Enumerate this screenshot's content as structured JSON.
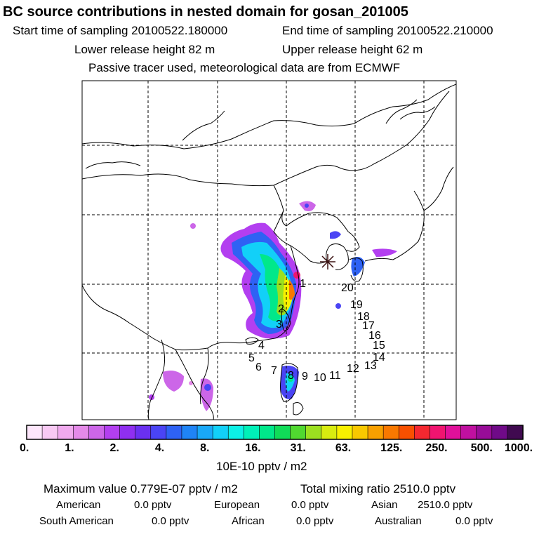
{
  "header": {
    "title": "BC  source contributions in nested domain for gosan_201005",
    "start_label": "Start time of sampling 20100522.180000",
    "end_label": "End time of sampling 20100522.210000",
    "lower_release": "Lower release height   82 m",
    "upper_release": "Upper release height   62 m",
    "tracer_note": "Passive tracer used, meteorological data are from ECMWF"
  },
  "map": {
    "receptor_marker": "receptor-star",
    "trajectory_labels": [
      "1",
      "2",
      "3",
      "4",
      "5",
      "6",
      "7",
      "8",
      "9",
      "10",
      "11",
      "12",
      "13",
      "14",
      "15",
      "16",
      "17",
      "18",
      "19",
      "20"
    ]
  },
  "colorbar": {
    "tick_labels": [
      "0.",
      "1.",
      "2.",
      "4.",
      "8.",
      "16.",
      "31.",
      "63.",
      "125.",
      "250.",
      "500.",
      "1000."
    ],
    "unit": "10E-10 pptv / m2",
    "colors": [
      "#fde6fb",
      "#f8c9f3",
      "#f0aaee",
      "#e48ae8",
      "#cc66e8",
      "#b33ff0",
      "#8f2ff0",
      "#6a30f0",
      "#4a44f4",
      "#2e62f4",
      "#1f84f6",
      "#19a8f8",
      "#12d0f8",
      "#0cf0e6",
      "#00f0b8",
      "#00e88a",
      "#10dc58",
      "#50d830",
      "#9ce020",
      "#d8ec10",
      "#f8f000",
      "#f8c800",
      "#f8a000",
      "#f87800",
      "#f85000",
      "#f42830",
      "#f01470",
      "#e0109a",
      "#c010a0",
      "#980c98",
      "#700a88",
      "#400a50"
    ]
  },
  "summary": {
    "max_value": "Maximum value  0.779E-07 pptv / m2",
    "total_mixing": "Total mixing ratio      2510.0 pptv",
    "american_label": "American",
    "american_value": "0.0 pptv",
    "european_label": "European",
    "european_value": "0.0 pptv",
    "asian_label": "Asian",
    "asian_value": "2510.0 pptv",
    "south_american_label": "South American",
    "south_american_value": "0.0 pptv",
    "african_label": "African",
    "african_value": "0.0 pptv",
    "australian_label": "Australian",
    "australian_value": "0.0 pptv"
  }
}
